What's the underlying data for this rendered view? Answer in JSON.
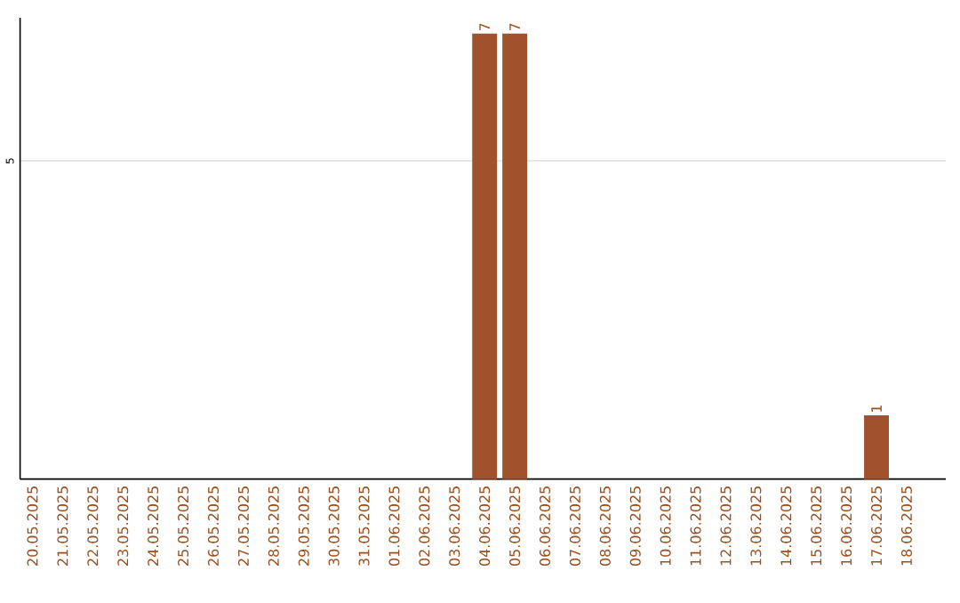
{
  "chart_data": {
    "type": "bar",
    "categories": [
      "20.05.2025",
      "21.05.2025",
      "22.05.2025",
      "23.05.2025",
      "24.05.2025",
      "25.05.2025",
      "26.05.2025",
      "27.05.2025",
      "28.05.2025",
      "29.05.2025",
      "30.05.2025",
      "31.05.2025",
      "01.06.2025",
      "02.06.2025",
      "03.06.2025",
      "04.06.2025",
      "05.06.2025",
      "06.06.2025",
      "07.06.2025",
      "08.06.2025",
      "09.06.2025",
      "10.06.2025",
      "11.06.2025",
      "12.06.2025",
      "13.06.2025",
      "14.06.2025",
      "15.06.2025",
      "16.06.2025",
      "17.06.2025",
      "18.06.2025"
    ],
    "values": [
      null,
      null,
      null,
      null,
      null,
      null,
      null,
      null,
      null,
      null,
      null,
      null,
      null,
      null,
      null,
      7,
      7,
      null,
      null,
      null,
      null,
      null,
      null,
      null,
      null,
      null,
      null,
      null,
      1,
      null
    ],
    "data_labels": true,
    "color": "#a0522d",
    "ylim": [
      0,
      7.25
    ],
    "yticks": [
      5
    ],
    "grid": "y"
  }
}
